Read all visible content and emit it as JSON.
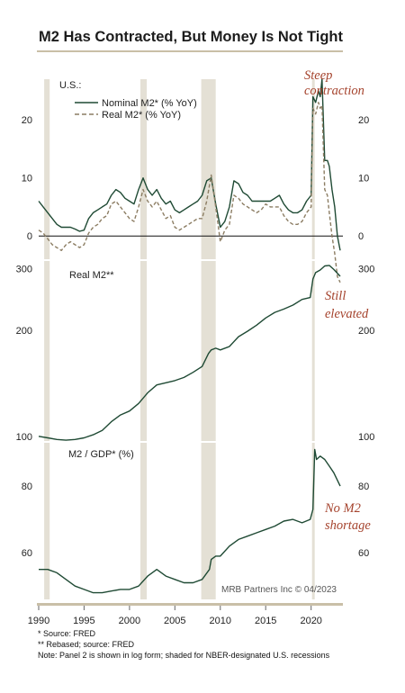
{
  "title": "M2 Has Contracted, But Money Is Not Tight",
  "colors": {
    "nominal": "#1f4a34",
    "real": "#8c7d63",
    "recession": "#e4e0d5",
    "annotation": "#a5432d",
    "rule": "#c9bfa7"
  },
  "chart_data": [
    {
      "type": "line",
      "panel_label": "U.S.:",
      "annotation": [
        "Steep",
        "contraction"
      ],
      "xlim": [
        1990,
        2023.5
      ],
      "ylim": [
        -4,
        27
      ],
      "yticks": [
        0,
        10,
        20
      ],
      "recessions": [
        [
          1990.6,
          1991.2
        ],
        [
          2001.2,
          2001.9
        ],
        [
          2007.9,
          2009.5
        ],
        [
          2020.1,
          2020.4
        ]
      ],
      "series": [
        {
          "name": "Nominal M2* (% YoY)",
          "style": "solid",
          "x": [
            1990,
            1990.5,
            1991,
            1991.5,
            1992,
            1992.5,
            1993,
            1993.5,
            1994,
            1994.5,
            1995,
            1995.5,
            1996,
            1996.5,
            1997,
            1997.5,
            1998,
            1998.5,
            1999,
            1999.5,
            2000,
            2000.5,
            2001,
            2001.5,
            2002,
            2002.5,
            2003,
            2003.5,
            2004,
            2004.5,
            2005,
            2005.5,
            2006,
            2006.5,
            2007,
            2007.5,
            2008,
            2008.5,
            2009,
            2009.5,
            2010,
            2010.5,
            2011,
            2011.5,
            2012,
            2012.5,
            2013,
            2013.5,
            2014,
            2014.5,
            2015,
            2015.5,
            2016,
            2016.5,
            2017,
            2017.5,
            2018,
            2018.5,
            2019,
            2019.5,
            2020,
            2020.2,
            2020.5,
            2020.8,
            2021,
            2021.2,
            2021.5,
            2021.8,
            2022,
            2022.3,
            2022.6,
            2022.9,
            2023.2
          ],
          "values": [
            6,
            5,
            4,
            3,
            2,
            1.5,
            1.5,
            1.5,
            1.2,
            0.8,
            1,
            3,
            4,
            4.5,
            5,
            5.5,
            7,
            8,
            7.5,
            6.5,
            6,
            5.5,
            8,
            10,
            8,
            7,
            8,
            6.5,
            5.5,
            6,
            4.5,
            4,
            4.5,
            5,
            5.5,
            6,
            7,
            9.5,
            10,
            5.5,
            1.5,
            2.5,
            5,
            9.5,
            9,
            7.5,
            7,
            6,
            6,
            6,
            6,
            6,
            6.5,
            7,
            5.5,
            4.5,
            4,
            4,
            4.5,
            6,
            7,
            24,
            23,
            25,
            24,
            27,
            13,
            13,
            12,
            8,
            5,
            0,
            -2.5
          ]
        },
        {
          "name": "Real M2* (% YoY)",
          "style": "dashed",
          "x": [
            1990,
            1990.5,
            1991,
            1991.5,
            1992,
            1992.5,
            1993,
            1993.5,
            1994,
            1994.5,
            1995,
            1995.5,
            1996,
            1996.5,
            1997,
            1997.5,
            1998,
            1998.5,
            1999,
            1999.5,
            2000,
            2000.5,
            2001,
            2001.5,
            2002,
            2002.5,
            2003,
            2003.5,
            2004,
            2004.5,
            2005,
            2005.5,
            2006,
            2006.5,
            2007,
            2007.5,
            2008,
            2008.5,
            2009,
            2009.5,
            2010,
            2010.5,
            2011,
            2011.5,
            2012,
            2012.5,
            2013,
            2013.5,
            2014,
            2014.5,
            2015,
            2015.5,
            2016,
            2016.5,
            2017,
            2017.5,
            2018,
            2018.5,
            2019,
            2019.5,
            2020,
            2020.2,
            2020.5,
            2020.8,
            2021,
            2021.2,
            2021.5,
            2021.8,
            2022,
            2022.3,
            2022.6,
            2022.9,
            2023.2
          ],
          "values": [
            1,
            0.5,
            -0.5,
            -1.5,
            -2,
            -2.5,
            -1.5,
            -1,
            -1.5,
            -2,
            -1.5,
            0.5,
            1.5,
            2,
            3,
            3.5,
            5.5,
            6,
            5,
            4,
            3,
            2.5,
            5,
            8,
            6,
            5,
            6,
            4.5,
            3,
            3.5,
            1.5,
            1,
            1.5,
            2,
            2.5,
            3,
            3,
            6,
            10.5,
            5,
            -1,
            1,
            2,
            7,
            6.5,
            5.5,
            5,
            4.5,
            4,
            4.5,
            5.5,
            5,
            5,
            5,
            3.5,
            2.5,
            2,
            2,
            2.5,
            4,
            5,
            22,
            21,
            23,
            22,
            22.5,
            8,
            7,
            4,
            0,
            -3,
            -7,
            -8
          ]
        }
      ]
    },
    {
      "type": "line",
      "panel_label": "Real M2**",
      "annotation": [
        "Still",
        "elevated"
      ],
      "xlim": [
        1990,
        2023.5
      ],
      "ylim": [
        97,
        315
      ],
      "scale": "log",
      "yticks": [
        100,
        200,
        300
      ],
      "recessions": [
        [
          1990.6,
          1991.2
        ],
        [
          2001.2,
          2001.9
        ],
        [
          2007.9,
          2009.5
        ],
        [
          2020.1,
          2020.4
        ]
      ],
      "series": [
        {
          "name": "Real M2**",
          "style": "solid",
          "x": [
            1990,
            1991,
            1992,
            1993,
            1994,
            1995,
            1996,
            1997,
            1998,
            1999,
            2000,
            2001,
            2002,
            2003,
            2004,
            2005,
            2006,
            2007,
            2008,
            2008.7,
            2009,
            2009.5,
            2010,
            2011,
            2012,
            2013,
            2014,
            2015,
            2016,
            2017,
            2018,
            2019,
            2019.9,
            2020.2,
            2020.5,
            2021,
            2021.5,
            2022,
            2022.5,
            2023.2
          ],
          "values": [
            100,
            99,
            98,
            97.5,
            98,
            99,
            101,
            104,
            110,
            115,
            118,
            124,
            133,
            140,
            142,
            144,
            147,
            152,
            158,
            172,
            176,
            178,
            176,
            180,
            192,
            199,
            207,
            217,
            225,
            230,
            236,
            245,
            248,
            280,
            292,
            297,
            305,
            306,
            298,
            285
          ]
        }
      ]
    },
    {
      "type": "line",
      "panel_label": "M2 / GDP* (%)",
      "annotation": [
        "No M2",
        "shortage"
      ],
      "xlim": [
        1990,
        2023.5
      ],
      "ylim": [
        46,
        93
      ],
      "yticks": [
        60,
        80
      ],
      "xticks": [
        1990,
        1995,
        2000,
        2005,
        2010,
        2015,
        2020
      ],
      "recessions": [
        [
          1990.6,
          1991.2
        ],
        [
          2001.2,
          2001.9
        ],
        [
          2007.9,
          2009.5
        ],
        [
          2020.1,
          2020.4
        ]
      ],
      "series": [
        {
          "name": "M2 / GDP* (%)",
          "style": "solid",
          "x": [
            1990,
            1991,
            1992,
            1993,
            1994,
            1995,
            1996,
            1997,
            1998,
            1999,
            2000,
            2001,
            2002,
            2003,
            2004,
            2005,
            2006,
            2007,
            2008,
            2008.8,
            2009,
            2009.5,
            2010,
            2011,
            2012,
            2013,
            2014,
            2015,
            2016,
            2017,
            2018,
            2019,
            2019.9,
            2020.2,
            2020.4,
            2020.6,
            2021,
            2021.5,
            2022,
            2022.5,
            2023.2
          ],
          "values": [
            55,
            55,
            54,
            52,
            50,
            49,
            48,
            48,
            48.5,
            49,
            49,
            50,
            53,
            55,
            53,
            52,
            51,
            51,
            52,
            55,
            58,
            59,
            59,
            62,
            64,
            65,
            66,
            67,
            68,
            69.5,
            70,
            69,
            70,
            73,
            91,
            88,
            89,
            88,
            86,
            84,
            80
          ]
        }
      ]
    }
  ],
  "axis": {
    "xticks_labels": [
      "1990",
      "1995",
      "2000",
      "2005",
      "2010",
      "2015",
      "2020"
    ]
  },
  "credit": "MRB Partners Inc © 04/2023",
  "footnotes": [
    "*  Source: FRED",
    "** Rebased; source: FRED",
    "Note: Panel 2 is shown in log form; shaded for NBER-designated U.S. recessions"
  ]
}
